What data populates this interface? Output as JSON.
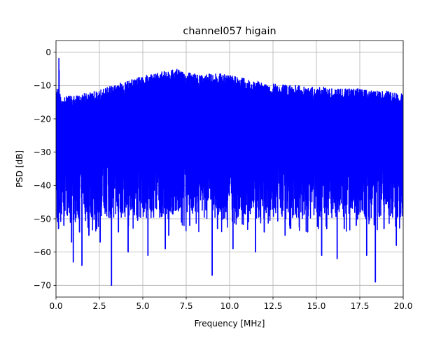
{
  "chart_data": {
    "type": "line",
    "title": "channel057 higain",
    "xlabel": "Frequency [MHz]",
    "ylabel": "PSD [dB]",
    "xlim": [
      0,
      20
    ],
    "ylim": [
      -73.5,
      3.5
    ],
    "xticks": [
      0,
      2.5,
      5,
      7.5,
      10,
      12.5,
      15,
      17.5,
      20
    ],
    "xtick_labels": [
      "0.0",
      "2.5",
      "5.0",
      "7.5",
      "10.0",
      "12.5",
      "15.0",
      "17.5",
      "20.0"
    ],
    "yticks": [
      0,
      -10,
      -20,
      -30,
      -40,
      -50,
      -60,
      -70
    ],
    "ytick_labels": [
      "0",
      "−10",
      "−20",
      "−30",
      "−40",
      "−50",
      "−60",
      "−70"
    ],
    "grid": true,
    "series": [
      {
        "color": "#0000ff",
        "envelope_x": [
          0.0,
          0.15,
          0.17,
          0.2,
          0.3,
          0.5,
          1.0,
          1.5,
          2.0,
          2.5,
          3.0,
          3.5,
          4.0,
          4.5,
          5.0,
          5.5,
          6.0,
          6.5,
          7.0,
          7.5,
          8.0,
          8.5,
          9.0,
          9.5,
          10.0,
          10.5,
          11.0,
          11.5,
          12.0,
          12.5,
          13.0,
          13.5,
          14.0,
          14.5,
          15.0,
          15.5,
          16.0,
          16.5,
          17.0,
          17.5,
          18.0,
          18.5,
          19.0,
          19.5,
          20.0
        ],
        "envelope_max": [
          -11,
          -11,
          0,
          -11,
          -14,
          -13,
          -13,
          -12.5,
          -12,
          -11.5,
          -10.5,
          -9.5,
          -9,
          -8,
          -7,
          -6.5,
          -6,
          -5.5,
          -5,
          -6,
          -6.5,
          -6.5,
          -6.5,
          -6.5,
          -7,
          -7.5,
          -8,
          -8.5,
          -9,
          -9.5,
          -9.5,
          -10,
          -10,
          -10.5,
          -10.5,
          -10.5,
          -11,
          -11,
          -11,
          -11,
          -11.5,
          -11.5,
          -11.5,
          -12,
          -12
        ],
        "noise_floor": -50,
        "deep_dips": [
          {
            "x": 0.15,
            "y": -53
          },
          {
            "x": 0.45,
            "y": -52
          },
          {
            "x": 0.9,
            "y": -57
          },
          {
            "x": 1.0,
            "y": -63
          },
          {
            "x": 1.35,
            "y": -54
          },
          {
            "x": 1.5,
            "y": -64
          },
          {
            "x": 1.9,
            "y": -55
          },
          {
            "x": 2.35,
            "y": -53
          },
          {
            "x": 2.55,
            "y": -57
          },
          {
            "x": 3.2,
            "y": -70
          },
          {
            "x": 3.6,
            "y": -54
          },
          {
            "x": 4.15,
            "y": -60
          },
          {
            "x": 5.3,
            "y": -61
          },
          {
            "x": 6.3,
            "y": -59
          },
          {
            "x": 6.5,
            "y": -55
          },
          {
            "x": 7.7,
            "y": -52
          },
          {
            "x": 9.0,
            "y": -67
          },
          {
            "x": 9.3,
            "y": -53
          },
          {
            "x": 10.2,
            "y": -59
          },
          {
            "x": 11.5,
            "y": -60
          },
          {
            "x": 12.0,
            "y": -54
          },
          {
            "x": 13.2,
            "y": -55
          },
          {
            "x": 14.5,
            "y": -54
          },
          {
            "x": 15.3,
            "y": -61
          },
          {
            "x": 15.6,
            "y": -53
          },
          {
            "x": 16.2,
            "y": -62
          },
          {
            "x": 16.6,
            "y": -53
          },
          {
            "x": 17.3,
            "y": -52
          },
          {
            "x": 17.9,
            "y": -61
          },
          {
            "x": 18.4,
            "y": -69
          },
          {
            "x": 18.9,
            "y": -53
          },
          {
            "x": 19.6,
            "y": -58
          }
        ]
      }
    ]
  }
}
